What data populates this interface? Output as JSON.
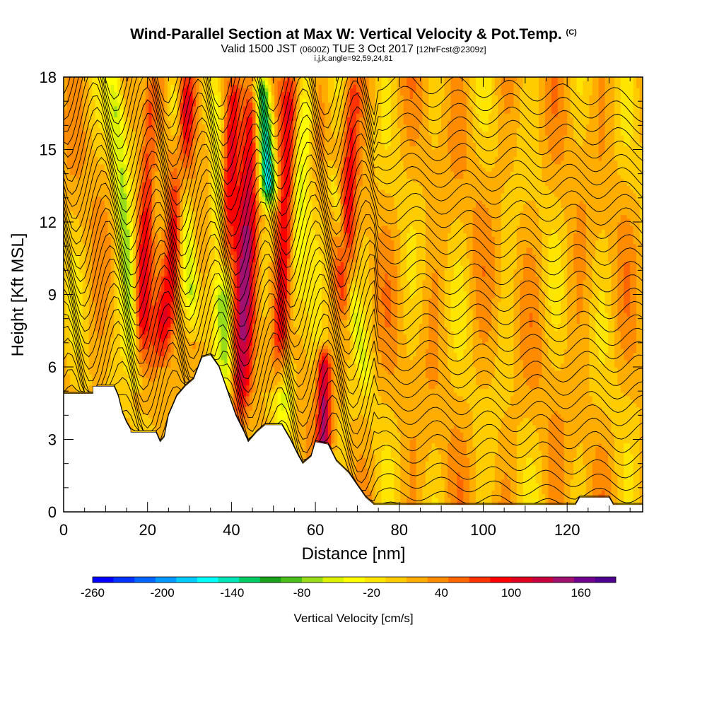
{
  "header": {
    "title_main": "Wind-Parallel Section at Max W: Vertical Velocity & Pot.Temp.",
    "title_mark": "(C)",
    "valid_prefix": "Valid 1500 JST",
    "valid_utc": "(0600Z)",
    "valid_date": "TUE 3 Oct 2017",
    "forecast_tag": "[12hrFcst@2309z]",
    "params": "i,j,k,angle=92,59,24,81"
  },
  "chart_data": {
    "type": "heatmap",
    "xlabel": "Distance [nm]",
    "ylabel": "Height [Kft MSL]",
    "xlim": [
      0,
      138
    ],
    "ylim": [
      0,
      18
    ],
    "x_ticks": [
      0,
      20,
      40,
      60,
      80,
      100,
      120
    ],
    "y_ticks": [
      0,
      3,
      6,
      9,
      12,
      15,
      18
    ],
    "colorbar": {
      "label": "Vertical Velocity [cm/s]",
      "tick_labels": [
        "-260",
        "-200",
        "-140",
        "-80",
        "-20",
        "40",
        "100",
        "160"
      ],
      "tick_values": [
        -260,
        -200,
        -140,
        -80,
        -20,
        40,
        100,
        160
      ],
      "range": [
        -260,
        190
      ],
      "colors": [
        "#0000ff",
        "#0033ff",
        "#0066ff",
        "#0099ff",
        "#00ccff",
        "#00ffff",
        "#00e5b8",
        "#00cc66",
        "#1aa31a",
        "#4cc01a",
        "#99dd1a",
        "#ddf200",
        "#ffff00",
        "#ffe600",
        "#ffcc00",
        "#ffad00",
        "#ff8c00",
        "#ff6600",
        "#ff3300",
        "#ff0000",
        "#e00020",
        "#c80040",
        "#a01070",
        "#700090",
        "#500090"
      ]
    },
    "terrain_kft": [
      [
        0,
        4.9
      ],
      [
        7,
        4.9
      ],
      [
        7,
        5.2
      ],
      [
        12,
        5.2
      ],
      [
        13,
        4.8
      ],
      [
        14,
        4.1
      ],
      [
        15,
        3.7
      ],
      [
        16,
        3.4
      ],
      [
        16,
        3.3
      ],
      [
        22,
        3.3
      ],
      [
        23,
        2.9
      ],
      [
        24,
        3.1
      ],
      [
        25,
        4.0
      ],
      [
        26,
        4.4
      ],
      [
        27,
        4.8
      ],
      [
        29,
        5.2
      ],
      [
        31,
        5.5
      ],
      [
        33,
        6.4
      ],
      [
        35,
        6.5
      ],
      [
        37,
        6.0
      ],
      [
        39,
        5.0
      ],
      [
        41,
        4.0
      ],
      [
        43,
        3.3
      ],
      [
        44,
        2.9
      ],
      [
        46,
        3.3
      ],
      [
        48,
        3.6
      ],
      [
        52,
        3.6
      ],
      [
        54,
        3.0
      ],
      [
        56,
        2.3
      ],
      [
        57,
        2.0
      ],
      [
        59,
        2.3
      ],
      [
        60,
        2.9
      ],
      [
        63,
        2.8
      ],
      [
        65,
        2.1
      ],
      [
        68,
        1.6
      ],
      [
        70,
        1.1
      ],
      [
        72,
        0.6
      ],
      [
        74,
        0.3
      ],
      [
        122,
        0.3
      ],
      [
        123,
        0.6
      ],
      [
        130,
        0.6
      ],
      [
        131,
        0.3
      ],
      [
        138,
        0.3
      ]
    ],
    "updraft_bands": [
      {
        "top_x": 21,
        "top_h": 18,
        "bot_x": 18,
        "bot_h": 6.5,
        "w": 70,
        "width": 2
      },
      {
        "top_x": 30,
        "top_h": 18,
        "bot_x": 24,
        "bot_h": 7,
        "w": 110,
        "width": 2.5
      },
      {
        "top_x": 41,
        "top_h": 18,
        "bot_x": 38,
        "bot_h": 10,
        "w": 90,
        "width": 2
      },
      {
        "top_x": 45,
        "top_h": 18,
        "bot_x": 42,
        "bot_h": 4,
        "w": 105,
        "width": 2.5
      },
      {
        "top_x": 54,
        "top_h": 18,
        "bot_x": 52,
        "bot_h": 6,
        "w": 110,
        "width": 2.5
      },
      {
        "top_x": 62,
        "top_h": 6.5,
        "bot_x": 62,
        "bot_h": 2.5,
        "w": 120,
        "width": 1.5
      },
      {
        "top_x": 69,
        "top_h": 18,
        "bot_x": 67,
        "bot_h": 9,
        "w": 70,
        "width": 2
      }
    ],
    "downdraft_bands": [
      {
        "top_x": 12,
        "top_h": 18,
        "bot_x": 17,
        "bot_h": 6,
        "w": -80,
        "width": 2
      },
      {
        "top_x": 26,
        "top_h": 18,
        "bot_x": 31,
        "bot_h": 8,
        "w": -90,
        "width": 2
      },
      {
        "top_x": 36,
        "top_h": 18,
        "bot_x": 39,
        "bot_h": 5,
        "w": -70,
        "width": 2
      },
      {
        "top_x": 47,
        "top_h": 18,
        "bot_x": 49,
        "bot_h": 13,
        "w": -180,
        "width": 2
      },
      {
        "top_x": 58,
        "top_h": 18,
        "bot_x": 52,
        "bot_h": 3.5,
        "w": -80,
        "width": 2.5
      },
      {
        "top_x": 64,
        "top_h": 14,
        "bot_x": 72,
        "bot_h": 5.5,
        "w": -50,
        "width": 1.5
      }
    ]
  }
}
